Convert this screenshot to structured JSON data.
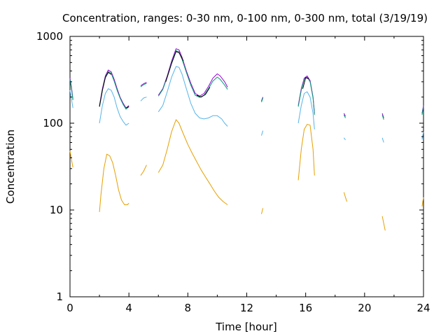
{
  "chart_data": {
    "type": "line",
    "title": "Concentration, ranges: 0-30 nm, 0-100 nm, 0-300 nm, total (3/19/19)",
    "xlabel": "Time [hour]",
    "ylabel": "Concentration",
    "xlim": [
      0,
      24
    ],
    "ylim": [
      1,
      1000
    ],
    "yscale": "log",
    "grid": false,
    "legend": "none",
    "x_ticks": [
      0,
      4,
      8,
      12,
      16,
      20,
      24
    ],
    "x_tick_labels": [
      "0",
      "4",
      "8",
      "12",
      "16",
      "20",
      "24"
    ],
    "y_ticks": [
      1,
      10,
      100,
      1000
    ],
    "y_tick_labels": [
      "1",
      "10",
      "100",
      "1000"
    ],
    "series": [
      {
        "color": "#9400d3",
        "segments": [
          [
            [
              0,
              330
            ],
            [
              0.1,
              260
            ],
            [
              0.2,
              190
            ]
          ],
          [
            [
              2.0,
              160
            ],
            [
              2.2,
              250
            ],
            [
              2.4,
              350
            ],
            [
              2.6,
              410
            ],
            [
              2.8,
              390
            ],
            [
              3.0,
              320
            ],
            [
              3.2,
              250
            ],
            [
              3.4,
              200
            ],
            [
              3.6,
              170
            ],
            [
              3.8,
              150
            ],
            [
              4.0,
              160
            ]
          ],
          [
            [
              4.8,
              270
            ],
            [
              5.0,
              285
            ],
            [
              5.2,
              295
            ]
          ],
          [
            [
              6.0,
              210
            ],
            [
              6.3,
              250
            ],
            [
              6.6,
              350
            ],
            [
              6.9,
              520
            ],
            [
              7.2,
              720
            ],
            [
              7.4,
              700
            ],
            [
              7.6,
              580
            ],
            [
              7.9,
              400
            ],
            [
              8.2,
              290
            ],
            [
              8.5,
              220
            ],
            [
              8.8,
              205
            ],
            [
              9.1,
              220
            ],
            [
              9.4,
              265
            ],
            [
              9.7,
              330
            ],
            [
              10.0,
              370
            ],
            [
              10.2,
              350
            ],
            [
              10.5,
              300
            ],
            [
              10.7,
              260
            ]
          ],
          [
            [
              13.0,
              180
            ],
            [
              13.1,
              200
            ]
          ],
          [
            [
              15.5,
              160
            ],
            [
              15.7,
              250
            ],
            [
              15.9,
              330
            ],
            [
              16.1,
              350
            ],
            [
              16.3,
              310
            ],
            [
              16.5,
              200
            ],
            [
              16.6,
              130
            ]
          ],
          [
            [
              18.6,
              130
            ],
            [
              18.7,
              120
            ]
          ],
          [
            [
              21.2,
              130
            ],
            [
              21.3,
              115
            ]
          ],
          [
            [
              23.9,
              130
            ],
            [
              24.0,
              160
            ]
          ]
        ]
      },
      {
        "color": "#009e73",
        "segments": [
          [
            [
              0,
              320
            ],
            [
              0.1,
              250
            ],
            [
              0.2,
              185
            ]
          ],
          [
            [
              2.0,
              155
            ],
            [
              2.2,
              240
            ],
            [
              2.4,
              340
            ],
            [
              2.6,
              395
            ],
            [
              2.8,
              375
            ],
            [
              3.0,
              305
            ],
            [
              3.2,
              240
            ],
            [
              3.4,
              195
            ],
            [
              3.6,
              165
            ],
            [
              3.8,
              145
            ],
            [
              4.0,
              155
            ]
          ],
          [
            [
              4.8,
              262
            ],
            [
              5.0,
              278
            ],
            [
              5.2,
              288
            ]
          ],
          [
            [
              6.0,
              205
            ],
            [
              6.3,
              245
            ],
            [
              6.6,
              340
            ],
            [
              6.9,
              500
            ],
            [
              7.2,
              685
            ],
            [
              7.4,
              665
            ],
            [
              7.6,
              550
            ],
            [
              7.9,
              385
            ],
            [
              8.2,
              275
            ],
            [
              8.5,
              210
            ],
            [
              8.8,
              198
            ],
            [
              9.1,
              210
            ],
            [
              9.4,
              250
            ],
            [
              9.7,
              305
            ],
            [
              10.0,
              340
            ],
            [
              10.2,
              320
            ],
            [
              10.5,
              275
            ],
            [
              10.7,
              245
            ]
          ],
          [
            [
              13.0,
              175
            ],
            [
              13.1,
              195
            ]
          ],
          [
            [
              15.5,
              155
            ],
            [
              15.7,
              240
            ],
            [
              15.9,
              320
            ],
            [
              16.1,
              340
            ],
            [
              16.3,
              300
            ],
            [
              16.5,
              195
            ],
            [
              16.6,
              125
            ]
          ],
          [
            [
              18.6,
              125
            ],
            [
              18.7,
              115
            ]
          ],
          [
            [
              21.2,
              125
            ],
            [
              21.3,
              110
            ]
          ],
          [
            [
              23.9,
              125
            ],
            [
              24.0,
              155
            ]
          ]
        ]
      },
      {
        "color": "#56b4e9",
        "segments": [
          [
            [
              0,
              240
            ],
            [
              0.1,
              190
            ],
            [
              0.2,
              150
            ]
          ],
          [
            [
              2.0,
              100
            ],
            [
              2.2,
              160
            ],
            [
              2.4,
              220
            ],
            [
              2.6,
              250
            ],
            [
              2.8,
              240
            ],
            [
              3.0,
              200
            ],
            [
              3.2,
              150
            ],
            [
              3.4,
              120
            ],
            [
              3.6,
              105
            ],
            [
              3.8,
              95
            ],
            [
              4.0,
              100
            ]
          ],
          [
            [
              4.8,
              180
            ],
            [
              5.0,
              195
            ],
            [
              5.2,
              200
            ]
          ],
          [
            [
              6.0,
              135
            ],
            [
              6.3,
              160
            ],
            [
              6.6,
              230
            ],
            [
              6.9,
              340
            ],
            [
              7.2,
              450
            ],
            [
              7.4,
              440
            ],
            [
              7.6,
              370
            ],
            [
              7.9,
              250
            ],
            [
              8.2,
              170
            ],
            [
              8.5,
              130
            ],
            [
              8.8,
              115
            ],
            [
              9.1,
              112
            ],
            [
              9.4,
              115
            ],
            [
              9.7,
              122
            ],
            [
              10.0,
              122
            ],
            [
              10.3,
              112
            ],
            [
              10.5,
              100
            ],
            [
              10.7,
              92
            ]
          ],
          [
            [
              13.0,
              72
            ],
            [
              13.1,
              82
            ]
          ],
          [
            [
              15.5,
              100
            ],
            [
              15.7,
              160
            ],
            [
              15.9,
              220
            ],
            [
              16.1,
              230
            ],
            [
              16.3,
              200
            ],
            [
              16.5,
              130
            ],
            [
              16.6,
              85
            ]
          ],
          [
            [
              18.6,
              68
            ],
            [
              18.7,
              64
            ]
          ],
          [
            [
              21.2,
              68
            ],
            [
              21.3,
              60
            ]
          ],
          [
            [
              23.9,
              65
            ],
            [
              24.0,
              80
            ]
          ]
        ]
      },
      {
        "color": "#e69f00",
        "segments": [
          [
            [
              0,
              48
            ],
            [
              0.1,
              38
            ],
            [
              0.2,
              31
            ]
          ],
          [
            [
              2.0,
              9.5
            ],
            [
              2.1,
              15
            ],
            [
              2.3,
              30
            ],
            [
              2.5,
              44
            ],
            [
              2.7,
              42
            ],
            [
              2.9,
              35
            ],
            [
              3.1,
              25
            ],
            [
              3.3,
              17
            ],
            [
              3.5,
              13
            ],
            [
              3.7,
              11.5
            ],
            [
              3.9,
              11.5
            ],
            [
              4.0,
              12
            ]
          ],
          [
            [
              4.8,
              25
            ],
            [
              5.0,
              28
            ],
            [
              5.2,
              33
            ]
          ],
          [
            [
              6.0,
              27
            ],
            [
              6.3,
              33
            ],
            [
              6.6,
              50
            ],
            [
              6.9,
              80
            ],
            [
              7.2,
              110
            ],
            [
              7.4,
              100
            ],
            [
              7.7,
              75
            ],
            [
              8.0,
              57
            ],
            [
              8.3,
              45
            ],
            [
              8.6,
              36
            ],
            [
              8.9,
              29
            ],
            [
              9.2,
              24
            ],
            [
              9.5,
              20
            ],
            [
              9.8,
              16.5
            ],
            [
              10.1,
              14
            ],
            [
              10.4,
              12.5
            ],
            [
              10.7,
              11.5
            ]
          ],
          [
            [
              13.0,
              9
            ],
            [
              13.1,
              10.5
            ]
          ],
          [
            [
              15.5,
              22
            ],
            [
              15.7,
              50
            ],
            [
              15.9,
              85
            ],
            [
              16.1,
              97
            ],
            [
              16.3,
              95
            ],
            [
              16.5,
              50
            ],
            [
              16.6,
              25
            ]
          ],
          [
            [
              18.6,
              16
            ],
            [
              18.7,
              14
            ],
            [
              18.8,
              12.5
            ]
          ],
          [
            [
              21.2,
              8.5
            ],
            [
              21.3,
              7
            ],
            [
              21.4,
              5.8
            ]
          ],
          [
            [
              23.9,
              11
            ],
            [
              24.0,
              14
            ]
          ]
        ]
      },
      {
        "color": "#000000",
        "segments": [
          [
            [
              2.0,
              155
            ],
            [
              2.2,
              240
            ],
            [
              2.4,
              335
            ],
            [
              2.6,
              385
            ],
            [
              2.8,
              365
            ]
          ],
          [
            [
              3.8,
              150
            ],
            [
              4.0,
              155
            ]
          ],
          [
            [
              6.5,
              300
            ],
            [
              6.9,
              490
            ],
            [
              7.2,
              670
            ],
            [
              7.4,
              650
            ],
            [
              7.7,
              520
            ]
          ],
          [
            [
              8.6,
              210
            ],
            [
              8.9,
              200
            ],
            [
              9.2,
              215
            ],
            [
              9.5,
              260
            ]
          ],
          [
            [
              15.8,
              250
            ],
            [
              16.0,
              335
            ],
            [
              16.2,
              325
            ]
          ]
        ]
      }
    ]
  }
}
